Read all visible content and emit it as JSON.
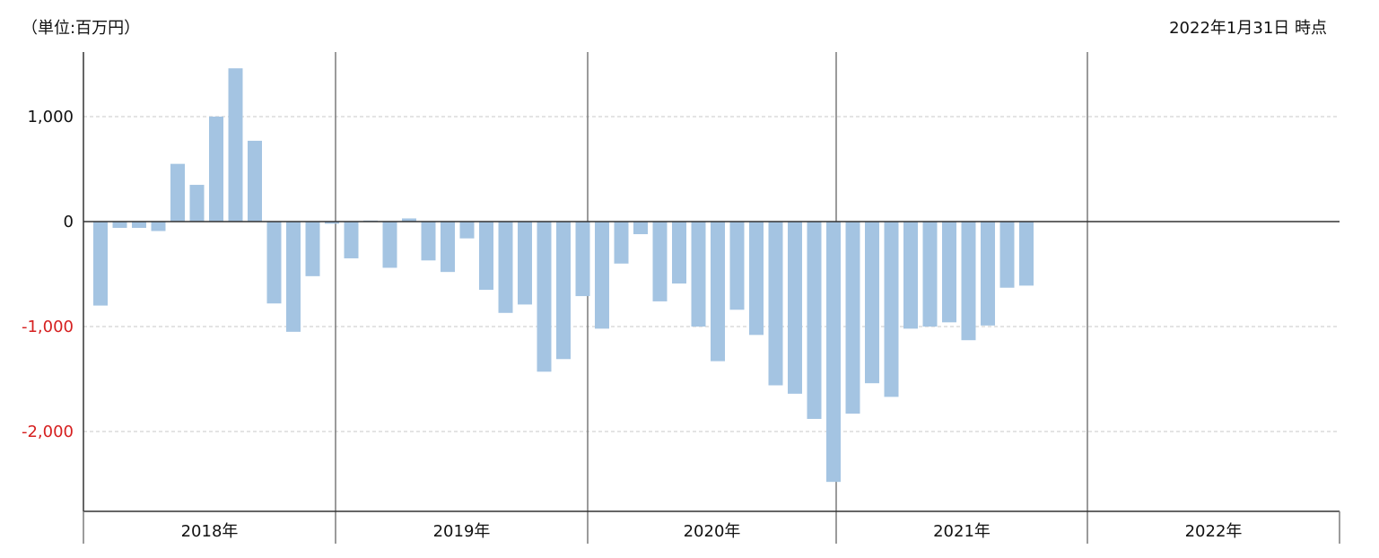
{
  "header": {
    "unit_label": "（単位:百万円）",
    "as_of_label": "2022年1月31日 時点"
  },
  "colors": {
    "bar": "#a4c4e2",
    "negative_tick": "#d62020",
    "axis": "#333333",
    "grid": "#c8c8c8",
    "year_divider": "#7a7a7a"
  },
  "chart_data": {
    "type": "bar",
    "title": "",
    "xlabel": "",
    "ylabel": "",
    "ylim": [
      -2750,
      1580
    ],
    "yticks": [
      1000,
      0,
      -1000,
      -2000
    ],
    "ytick_labels": [
      "1,000",
      "0",
      "-1,000",
      "-2,000"
    ],
    "grid": "horizontal dashed at y-ticks",
    "years": [
      "2018年",
      "2019年",
      "2020年",
      "2021年",
      "2022年"
    ],
    "categories": [
      "2018-01",
      "2018-02",
      "2018-03",
      "2018-04",
      "2018-05",
      "2018-06",
      "2018-07",
      "2018-08",
      "2018-09",
      "2018-10",
      "2018-11",
      "2018-12",
      "2019-01",
      "2019-02",
      "2019-03",
      "2019-04",
      "2019-05",
      "2019-06",
      "2019-07",
      "2019-08",
      "2019-09",
      "2019-10",
      "2019-11",
      "2019-12",
      "2020-01",
      "2020-02",
      "2020-03",
      "2020-04",
      "2020-05",
      "2020-06",
      "2020-07",
      "2020-08",
      "2020-09",
      "2020-10",
      "2020-11",
      "2020-12",
      "2021-01",
      "2021-02",
      "2021-03",
      "2021-04",
      "2021-05",
      "2021-06",
      "2021-07",
      "2021-08",
      "2021-09",
      "2021-10",
      "2021-11",
      "2021-12",
      "2022-01"
    ],
    "values": [
      -800,
      -60,
      -60,
      -90,
      550,
      350,
      1000,
      1460,
      770,
      -780,
      -1050,
      -520,
      -20,
      -350,
      10,
      -440,
      30,
      -370,
      -480,
      -160,
      -650,
      -870,
      -790,
      -1430,
      -1310,
      -710,
      -1020,
      -400,
      -120,
      -760,
      -590,
      -1000,
      -1330,
      -840,
      -1080,
      -1560,
      -1640,
      -1880,
      -2480,
      -1830,
      -1540,
      -1670,
      -1020,
      -1000,
      -960,
      -1130,
      -990,
      -630,
      -610
    ]
  }
}
